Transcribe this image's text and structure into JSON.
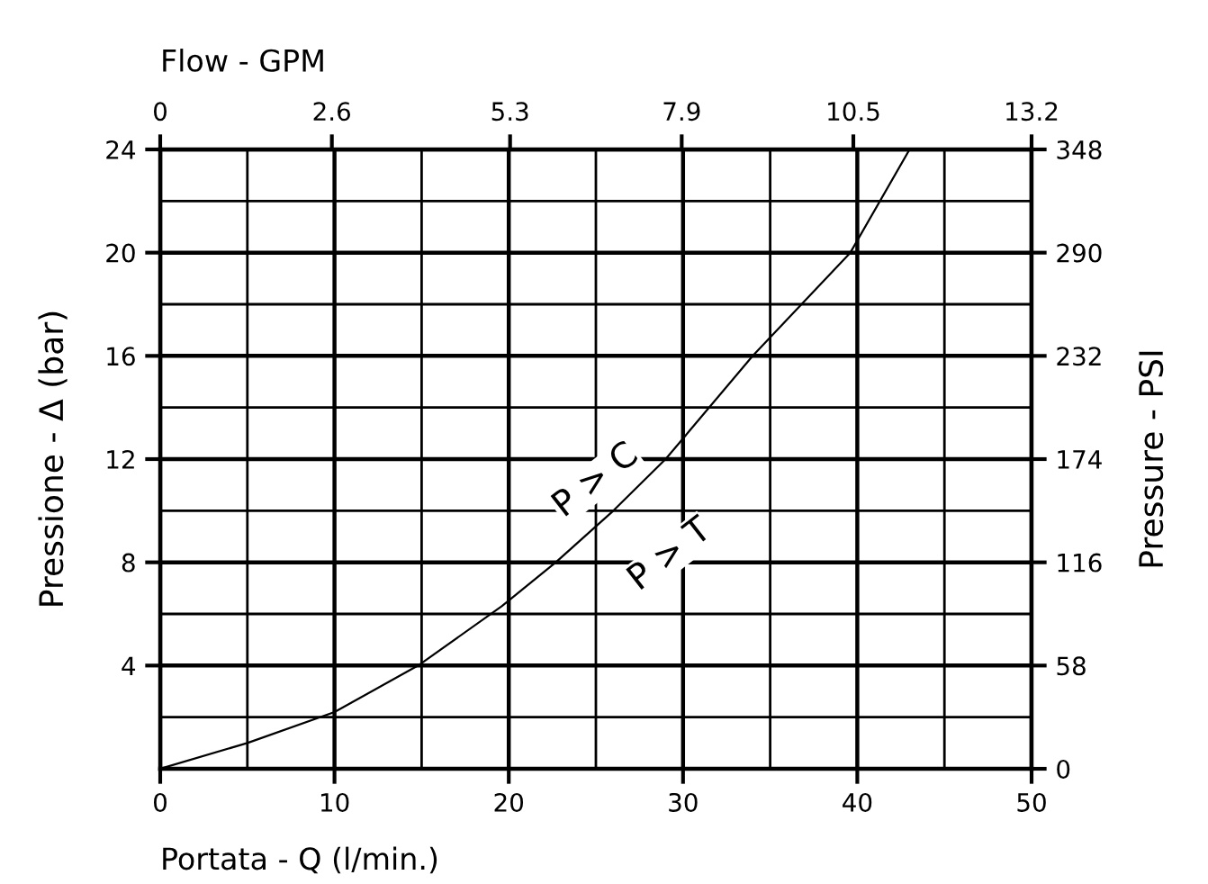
{
  "chart_data": {
    "type": "line",
    "xlabel": "Portata - Q (l/min.)",
    "ylabel": "Pressione - Δ (bar)",
    "y2label": "Pressure - PSI",
    "x2label": "Flow - GPM",
    "x": [
      0,
      5,
      10,
      14.8,
      19.6,
      22.7,
      26,
      29,
      34,
      39.6,
      43
    ],
    "series": [
      {
        "color": "#000000",
        "values": [
          0,
          1,
          2.2,
          4,
          6.3,
          8,
          10,
          12,
          16,
          20,
          24
        ]
      }
    ],
    "xlim": [
      0,
      50
    ],
    "xticks": [
      0,
      {
        "value": 5,
        "label": null
      },
      10,
      {
        "value": 15,
        "label": null
      },
      20,
      {
        "value": 25,
        "label": null
      },
      30,
      {
        "value": 35,
        "label": null
      },
      40,
      {
        "value": 45,
        "label": null
      },
      50
    ],
    "ylim": [
      0,
      24
    ],
    "yticks": [
      {
        "value": 0,
        "label": null
      },
      {
        "value": 2,
        "label": null
      },
      4,
      {
        "value": 6,
        "label": null
      },
      8,
      {
        "value": 10,
        "label": null
      },
      12,
      {
        "value": 14,
        "label": null
      },
      16,
      {
        "value": 18,
        "label": null
      },
      20,
      {
        "value": 22,
        "label": null
      },
      24
    ],
    "x2lim": [
      0,
      13.2
    ],
    "x2ticks": [
      0,
      2.6,
      5.3,
      7.9,
      10.5,
      13.2
    ],
    "y2lim": [
      0,
      348
    ],
    "y2ticks": [
      0,
      58,
      116,
      174,
      232,
      290,
      348
    ],
    "grid": true,
    "marker": "none",
    "line_style": "solid",
    "annotations": [
      "P > C",
      "P > T"
    ]
  }
}
